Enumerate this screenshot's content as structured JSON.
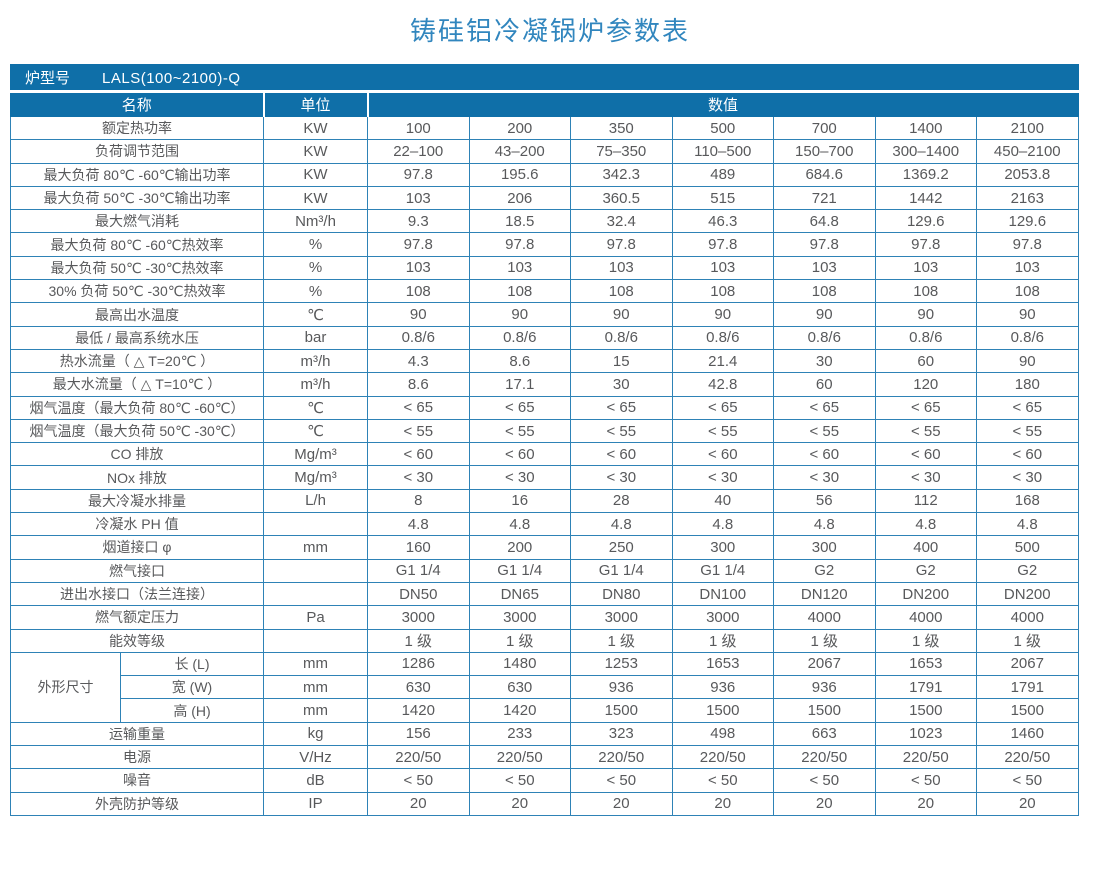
{
  "title": "铸硅铝冷凝锅炉参数表",
  "colors": {
    "header_bg": "#0f6fa8",
    "grid_line": "#2e82b6",
    "title_text": "#3186be",
    "cell_text": "#58595b"
  },
  "header": {
    "model_label": "炉型号",
    "model_value": "LALS(100~2100)-Q"
  },
  "columns": {
    "name": "名称",
    "unit": "单位",
    "value": "数值"
  },
  "rows": [
    {
      "label": "额定热功率",
      "unit": "KW",
      "values": [
        "100",
        "200",
        "350",
        "500",
        "700",
        "1400",
        "2100"
      ]
    },
    {
      "label": "负荷调节范围",
      "unit": "KW",
      "values": [
        "22–100",
        "43–200",
        "75–350",
        "110–500",
        "150–700",
        "300–1400",
        "450–2100"
      ]
    },
    {
      "label": "最大负荷 80℃ -60℃输出功率",
      "unit": "KW",
      "values": [
        "97.8",
        "195.6",
        "342.3",
        "489",
        "684.6",
        "1369.2",
        "2053.8"
      ]
    },
    {
      "label": "最大负荷 50℃ -30℃输出功率",
      "unit": "KW",
      "values": [
        "103",
        "206",
        "360.5",
        "515",
        "721",
        "1442",
        "2163"
      ]
    },
    {
      "label": "最大燃气消耗",
      "unit": "Nm³/h",
      "values": [
        "9.3",
        "18.5",
        "32.4",
        "46.3",
        "64.8",
        "129.6",
        "129.6"
      ]
    },
    {
      "label": "最大负荷 80℃ -60℃热效率",
      "unit": "%",
      "values": [
        "97.8",
        "97.8",
        "97.8",
        "97.8",
        "97.8",
        "97.8",
        "97.8"
      ]
    },
    {
      "label": "最大负荷 50℃ -30℃热效率",
      "unit": "%",
      "values": [
        "103",
        "103",
        "103",
        "103",
        "103",
        "103",
        "103"
      ]
    },
    {
      "label": "30% 负荷 50℃ -30℃热效率",
      "unit": "%",
      "values": [
        "108",
        "108",
        "108",
        "108",
        "108",
        "108",
        "108"
      ]
    },
    {
      "label": "最高出水温度",
      "unit": "℃",
      "values": [
        "90",
        "90",
        "90",
        "90",
        "90",
        "90",
        "90"
      ]
    },
    {
      "label": "最低 / 最高系统水压",
      "unit": "bar",
      "values": [
        "0.8/6",
        "0.8/6",
        "0.8/6",
        "0.8/6",
        "0.8/6",
        "0.8/6",
        "0.8/6"
      ]
    },
    {
      "label": "热水流量（ △ T=20℃ ）",
      "unit": "m³/h",
      "values": [
        "4.3",
        "8.6",
        "15",
        "21.4",
        "30",
        "60",
        "90"
      ]
    },
    {
      "label": "最大水流量（ △ T=10℃ ）",
      "unit": "m³/h",
      "values": [
        "8.6",
        "17.1",
        "30",
        "42.8",
        "60",
        "120",
        "180"
      ]
    },
    {
      "label": "烟气温度（最大负荷 80℃ -60℃）",
      "unit": "℃",
      "values": [
        "< 65",
        "< 65",
        "< 65",
        "< 65",
        "< 65",
        "< 65",
        "< 65"
      ]
    },
    {
      "label": "烟气温度（最大负荷 50℃ -30℃）",
      "unit": "℃",
      "values": [
        "< 55",
        "< 55",
        "< 55",
        "< 55",
        "< 55",
        "< 55",
        "< 55"
      ]
    },
    {
      "label": "CO 排放",
      "unit": "Mg/m³",
      "values": [
        "< 60",
        "< 60",
        "< 60",
        "< 60",
        "< 60",
        "< 60",
        "< 60"
      ]
    },
    {
      "label": "NOx 排放",
      "unit": "Mg/m³",
      "values": [
        "< 30",
        "< 30",
        "< 30",
        "< 30",
        "< 30",
        "< 30",
        "< 30"
      ]
    },
    {
      "label": "最大冷凝水排量",
      "unit": "L/h",
      "values": [
        "8",
        "16",
        "28",
        "40",
        "56",
        "112",
        "168"
      ]
    },
    {
      "label": "冷凝水 PH 值",
      "unit": "",
      "values": [
        "4.8",
        "4.8",
        "4.8",
        "4.8",
        "4.8",
        "4.8",
        "4.8"
      ]
    },
    {
      "label": "烟道接口 φ",
      "unit": "mm",
      "values": [
        "160",
        "200",
        "250",
        "300",
        "300",
        "400",
        "500"
      ]
    },
    {
      "label": "燃气接口",
      "unit": "",
      "values": [
        "G1 1/4",
        "G1 1/4",
        "G1 1/4",
        "G1 1/4",
        "G2",
        "G2",
        "G2"
      ]
    },
    {
      "label": "进出水接口（法兰连接）",
      "unit": "",
      "values": [
        "DN50",
        "DN65",
        "DN80",
        "DN100",
        "DN120",
        "DN200",
        "DN200"
      ]
    },
    {
      "label": "燃气额定压力",
      "unit": "Pa",
      "values": [
        "3000",
        "3000",
        "3000",
        "3000",
        "4000",
        "4000",
        "4000"
      ]
    },
    {
      "label": "能效等级",
      "unit": "",
      "values": [
        "1 级",
        "1 级",
        "1 级",
        "1 级",
        "1 级",
        "1 级",
        "1 级"
      ]
    },
    {
      "group": "外形尺寸",
      "group_span": 3,
      "label": "长 (L)",
      "unit": "mm",
      "values": [
        "1286",
        "1480",
        "1253",
        "1653",
        "2067",
        "1653",
        "2067"
      ]
    },
    {
      "in_group": true,
      "label": "宽 (W)",
      "unit": "mm",
      "values": [
        "630",
        "630",
        "936",
        "936",
        "936",
        "1791",
        "1791"
      ]
    },
    {
      "in_group": true,
      "label": "高 (H)",
      "unit": "mm",
      "values": [
        "1420",
        "1420",
        "1500",
        "1500",
        "1500",
        "1500",
        "1500"
      ]
    },
    {
      "label": "运输重量",
      "unit": "kg",
      "values": [
        "156",
        "233",
        "323",
        "498",
        "663",
        "1023",
        "1460"
      ]
    },
    {
      "label": "电源",
      "unit": "V/Hz",
      "values": [
        "220/50",
        "220/50",
        "220/50",
        "220/50",
        "220/50",
        "220/50",
        "220/50"
      ]
    },
    {
      "label": "噪音",
      "unit": "dB",
      "values": [
        "< 50",
        "< 50",
        "< 50",
        "< 50",
        "< 50",
        "< 50",
        "< 50"
      ]
    },
    {
      "label": "外壳防护等级",
      "unit": "IP",
      "values": [
        "20",
        "20",
        "20",
        "20",
        "20",
        "20",
        "20"
      ]
    }
  ]
}
